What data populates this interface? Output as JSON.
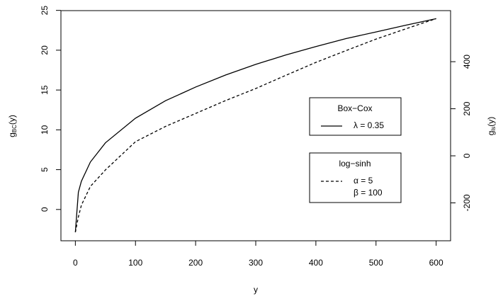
{
  "chart_data": {
    "type": "line",
    "xlabel": "y",
    "ylabel": [
      "g",
      "BC",
      "(y)"
    ],
    "y2label": [
      "g",
      "ls",
      "(y)"
    ],
    "x": [
      0,
      5,
      10,
      25,
      50,
      100,
      150,
      200,
      250,
      300,
      350,
      400,
      450,
      500,
      550,
      600
    ],
    "series": [
      {
        "name": "Box−Cox",
        "legend_labels": [
          "λ = 0.35"
        ],
        "color": "#000000",
        "dash": "solid",
        "values": [
          -2.86,
          2.16,
          3.54,
          5.96,
          8.37,
          11.46,
          13.66,
          15.37,
          16.89,
          18.22,
          19.4,
          20.46,
          21.46,
          22.29,
          23.15,
          23.96
        ]
      },
      {
        "name": "log−sinh",
        "legend_labels": [
          "α = 5",
          "β = 100"
        ],
        "color": "#000000",
        "dash": "dashed",
        "axis": "y2",
        "values": [
          -325,
          -260,
          -210,
          -130,
          -60,
          60,
          125,
          180,
          235,
          286,
          342,
          397,
          447,
          496,
          540,
          583
        ]
      }
    ],
    "xlim": [
      -24,
      624
    ],
    "xticks": [
      0,
      100,
      200,
      300,
      400,
      500,
      600
    ],
    "ylim": [
      -3.93,
      24.97
    ],
    "yticks": [
      0,
      5,
      10,
      15,
      20,
      25
    ],
    "y2lim": [
      -361,
      617
    ],
    "y2ticks": [
      -200,
      0,
      200,
      400
    ]
  }
}
